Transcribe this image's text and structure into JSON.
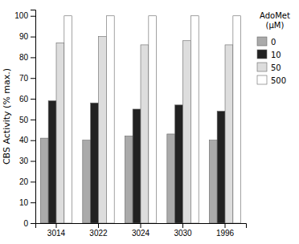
{
  "chart_data": {
    "type": "bar",
    "categories": [
      "3014",
      "3022",
      "3024",
      "3030",
      "1996"
    ],
    "series": [
      {
        "name": "0",
        "color": "#aaaaaa",
        "values": [
          41,
          40,
          42,
          43,
          40
        ]
      },
      {
        "name": "10",
        "color": "#222222",
        "values": [
          59,
          58,
          55,
          57,
          54
        ]
      },
      {
        "name": "50",
        "color": "#dddddd",
        "values": [
          87,
          90,
          86,
          88,
          86
        ]
      },
      {
        "name": "500",
        "color": "#ffffff",
        "values": [
          100,
          100,
          100,
          100,
          100
        ]
      }
    ],
    "ylabel": "CBS Activity (% max.)",
    "legend_title": [
      "AdoMet",
      "(μM)"
    ],
    "ylim": [
      0,
      103
    ],
    "yticks": [
      0,
      10,
      20,
      30,
      40,
      50,
      60,
      70,
      80,
      90,
      100
    ],
    "grid": false,
    "legend": "upper-right"
  }
}
